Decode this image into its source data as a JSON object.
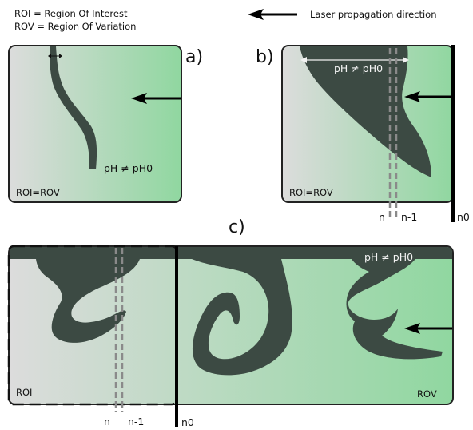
{
  "legend": {
    "roi_def": "ROI  = Region Of Interest",
    "rov_def": "ROV = Region Of Variation",
    "laser_label": "Laser propagation direction"
  },
  "panel_a": {
    "tag": "a)",
    "ph_label": "pH ≠ pH0",
    "region_label": "ROI=ROV"
  },
  "panel_b": {
    "tag": "b)",
    "ph_label": "pH ≠ pH0",
    "region_label": "ROI=ROV",
    "n_label": "n",
    "n_minus_label": "n-1",
    "n0_label": "n0"
  },
  "panel_c": {
    "tag": "c)",
    "ph_label": "pH ≠ pH0",
    "roi_label": "ROI",
    "rov_label": "ROV",
    "n_label": "n",
    "n_minus_label": "n-1",
    "n0_label": "n0"
  },
  "colors": {
    "gradient_left": "#dcdcdc",
    "gradient_right": "#90d7a0",
    "plume": "#3c4a43",
    "frame": "#222222",
    "dashed": "#8a8a8a"
  }
}
